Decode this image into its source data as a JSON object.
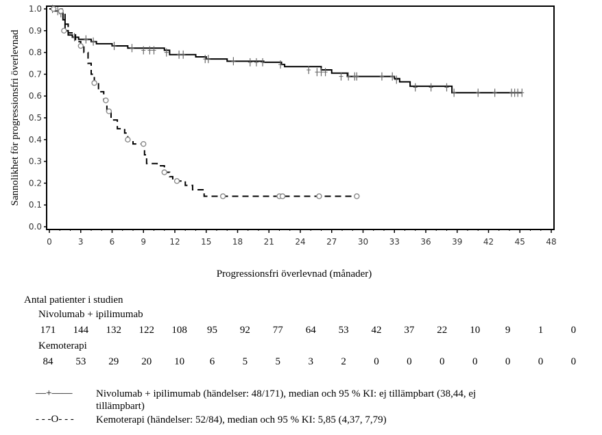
{
  "chart_data": {
    "type": "line",
    "subtype": "kaplan-meier",
    "title": "",
    "xlabel": "Progressionsfri överlevnad (månader)",
    "ylabel": "Sannolikhet för progressionsfri överlevnad",
    "xlim": [
      0,
      48
    ],
    "ylim": [
      0.0,
      1.0
    ],
    "x_ticks": [
      "0",
      "3",
      "6",
      "9",
      "12",
      "15",
      "18",
      "21",
      "24",
      "27",
      "30",
      "33",
      "36",
      "39",
      "42",
      "45",
      "48"
    ],
    "y_ticks": [
      "0.0",
      "0.1",
      "0.2",
      "0.3",
      "0.4",
      "0.5",
      "0.6",
      "0.7",
      "0.8",
      "0.9",
      "1.0"
    ],
    "grid": false,
    "series": [
      {
        "name": "Nivolumab + ipilimumab",
        "style": "solid",
        "censor_marker": "plus",
        "steps": [
          [
            0,
            1.0
          ],
          [
            0.5,
            0.99
          ],
          [
            1.0,
            0.98
          ],
          [
            1.3,
            0.95
          ],
          [
            1.5,
            0.9
          ],
          [
            1.8,
            0.88
          ],
          [
            2.2,
            0.87
          ],
          [
            2.8,
            0.86
          ],
          [
            4.0,
            0.85
          ],
          [
            4.5,
            0.84
          ],
          [
            6.0,
            0.83
          ],
          [
            7.5,
            0.82
          ],
          [
            11.0,
            0.81
          ],
          [
            11.5,
            0.79
          ],
          [
            14.0,
            0.78
          ],
          [
            15.0,
            0.77
          ],
          [
            17.0,
            0.76
          ],
          [
            20.5,
            0.755
          ],
          [
            22.2,
            0.745
          ],
          [
            22.5,
            0.735
          ],
          [
            26.0,
            0.72
          ],
          [
            27.0,
            0.705
          ],
          [
            28.5,
            0.69
          ],
          [
            33.0,
            0.68
          ],
          [
            33.5,
            0.665
          ],
          [
            34.5,
            0.645
          ],
          [
            38.5,
            0.615
          ],
          [
            45.2,
            0.615
          ]
        ],
        "censored": [
          [
            0.3,
            1.0
          ],
          [
            0.8,
            0.99
          ],
          [
            1.1,
            0.98
          ],
          [
            2.4,
            0.87
          ],
          [
            3.5,
            0.86
          ],
          [
            4.2,
            0.85
          ],
          [
            6.2,
            0.83
          ],
          [
            7.9,
            0.82
          ],
          [
            9.0,
            0.81
          ],
          [
            9.6,
            0.81
          ],
          [
            10.0,
            0.81
          ],
          [
            11.2,
            0.8
          ],
          [
            12.4,
            0.79
          ],
          [
            12.8,
            0.79
          ],
          [
            14.9,
            0.77
          ],
          [
            15.2,
            0.77
          ],
          [
            17.6,
            0.76
          ],
          [
            19.2,
            0.755
          ],
          [
            19.8,
            0.755
          ],
          [
            20.4,
            0.755
          ],
          [
            22.1,
            0.745
          ],
          [
            24.8,
            0.72
          ],
          [
            25.6,
            0.71
          ],
          [
            26.0,
            0.71
          ],
          [
            26.4,
            0.71
          ],
          [
            27.9,
            0.69
          ],
          [
            28.6,
            0.69
          ],
          [
            29.2,
            0.69
          ],
          [
            29.4,
            0.69
          ],
          [
            31.8,
            0.69
          ],
          [
            32.8,
            0.69
          ],
          [
            33.2,
            0.675
          ],
          [
            35.0,
            0.64
          ],
          [
            36.5,
            0.64
          ],
          [
            38.0,
            0.64
          ],
          [
            38.7,
            0.615
          ],
          [
            41.0,
            0.615
          ],
          [
            42.6,
            0.615
          ],
          [
            44.2,
            0.615
          ],
          [
            44.5,
            0.615
          ],
          [
            44.8,
            0.615
          ],
          [
            45.2,
            0.615
          ]
        ]
      },
      {
        "name": "Kemoterapi",
        "style": "dashed",
        "censor_marker": "circle",
        "steps": [
          [
            0,
            1.0
          ],
          [
            1.2,
            0.98
          ],
          [
            1.5,
            0.93
          ],
          [
            1.8,
            0.89
          ],
          [
            2.5,
            0.85
          ],
          [
            3.0,
            0.83
          ],
          [
            3.3,
            0.8
          ],
          [
            3.7,
            0.75
          ],
          [
            4.0,
            0.7
          ],
          [
            4.3,
            0.66
          ],
          [
            4.7,
            0.62
          ],
          [
            5.2,
            0.58
          ],
          [
            5.5,
            0.53
          ],
          [
            5.9,
            0.49
          ],
          [
            6.5,
            0.45
          ],
          [
            7.2,
            0.43
          ],
          [
            7.5,
            0.4
          ],
          [
            8.0,
            0.38
          ],
          [
            9.1,
            0.33
          ],
          [
            9.3,
            0.29
          ],
          [
            10.3,
            0.28
          ],
          [
            11.0,
            0.25
          ],
          [
            11.5,
            0.23
          ],
          [
            11.8,
            0.21
          ],
          [
            13.0,
            0.19
          ],
          [
            13.7,
            0.17
          ],
          [
            14.8,
            0.14
          ],
          [
            29.5,
            0.14
          ]
        ],
        "censored": [
          [
            0.4,
            1.0
          ],
          [
            1.1,
            0.99
          ],
          [
            1.4,
            0.9
          ],
          [
            3.0,
            0.83
          ],
          [
            4.3,
            0.66
          ],
          [
            5.4,
            0.58
          ],
          [
            5.7,
            0.53
          ],
          [
            7.5,
            0.4
          ],
          [
            9.0,
            0.38
          ],
          [
            11.0,
            0.25
          ],
          [
            12.2,
            0.21
          ],
          [
            16.6,
            0.14
          ],
          [
            22.0,
            0.14
          ],
          [
            22.3,
            0.14
          ],
          [
            25.8,
            0.14
          ],
          [
            29.4,
            0.14
          ]
        ]
      }
    ]
  },
  "risk_table": {
    "title": "Antal patienter i studien",
    "groups": [
      {
        "label": "Nivolumab + ipilimumab",
        "values": [
          "171",
          "144",
          "132",
          "122",
          "108",
          "95",
          "92",
          "77",
          "64",
          "53",
          "42",
          "37",
          "22",
          "10",
          "9",
          "1",
          "0"
        ]
      },
      {
        "label": "Kemoterapi",
        "values": [
          "84",
          "53",
          "29",
          "20",
          "10",
          "6",
          "5",
          "5",
          "3",
          "2",
          "0",
          "0",
          "0",
          "0",
          "0",
          "0",
          "0"
        ]
      }
    ]
  },
  "legend": [
    {
      "symbol": "—+——",
      "text_line1": "Nivolumab + ipilimumab (händelser: 48/171), median och 95 % KI: ej tillämpbart (38,44, ej",
      "text_line2": "tillämpbart)"
    },
    {
      "symbol": "- - -O- - -",
      "text_line1": "Kemoterapi (händelser: 52/84), median och 95 % KI: 5,85 (4,37, 7,79)",
      "text_line2": ""
    }
  ],
  "colors": {
    "line": "#000000",
    "censor": "#888888",
    "axis": "#000000"
  }
}
